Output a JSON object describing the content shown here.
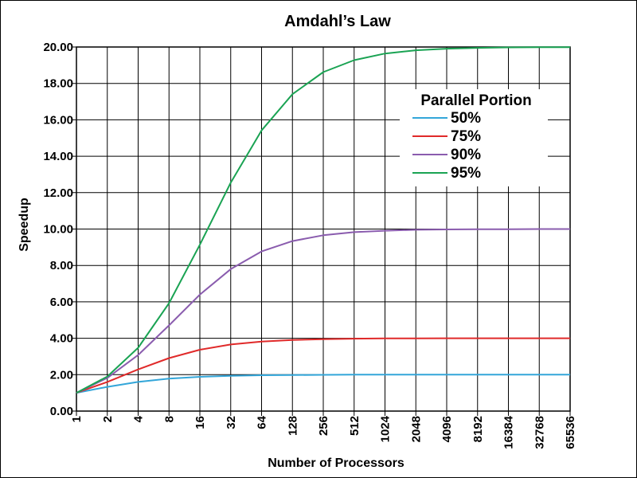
{
  "chart_data": {
    "type": "line",
    "title": "Amdahl’s Law",
    "xlabel": "Number of Processors",
    "ylabel": "Speedup",
    "x_scale": "log2",
    "x": [
      1,
      2,
      4,
      8,
      16,
      32,
      64,
      128,
      256,
      512,
      1024,
      2048,
      4096,
      8192,
      16384,
      32768,
      65536
    ],
    "x_tick_labels": [
      "1",
      "2",
      "4",
      "8",
      "16",
      "32",
      "64",
      "128",
      "256",
      "512",
      "1024",
      "2048",
      "4096",
      "8192",
      "16384",
      "32768",
      "65536"
    ],
    "y_tick_labels": [
      "0.00",
      "2.00",
      "4.00",
      "6.00",
      "8.00",
      "10.00",
      "12.00",
      "14.00",
      "16.00",
      "18.00",
      "20.00"
    ],
    "ylim": [
      0,
      20
    ],
    "grid": true,
    "legend": {
      "title": "Parallel Portion",
      "placement": "top-right"
    },
    "series": [
      {
        "name": "50%",
        "color": "#33a6d9",
        "values": [
          1.0,
          1.33,
          1.6,
          1.78,
          1.88,
          1.94,
          1.97,
          1.98,
          1.99,
          2.0,
          2.0,
          2.0,
          2.0,
          2.0,
          2.0,
          2.0,
          2.0
        ]
      },
      {
        "name": "75%",
        "color": "#e02a2a",
        "values": [
          1.0,
          1.6,
          2.29,
          2.91,
          3.37,
          3.66,
          3.82,
          3.91,
          3.95,
          3.98,
          3.99,
          3.99,
          4.0,
          4.0,
          4.0,
          4.0,
          4.0
        ]
      },
      {
        "name": "90%",
        "color": "#8a5cae",
        "values": [
          1.0,
          1.82,
          3.08,
          4.71,
          6.4,
          7.8,
          8.77,
          9.34,
          9.66,
          9.83,
          9.91,
          9.96,
          9.98,
          9.99,
          9.99,
          10.0,
          10.0
        ]
      },
      {
        "name": "95%",
        "color": "#1aa353",
        "values": [
          1.0,
          1.9,
          3.48,
          5.93,
          9.14,
          12.55,
          15.42,
          17.41,
          18.62,
          19.28,
          19.64,
          19.82,
          19.91,
          19.95,
          19.98,
          19.99,
          19.99
        ]
      }
    ]
  }
}
